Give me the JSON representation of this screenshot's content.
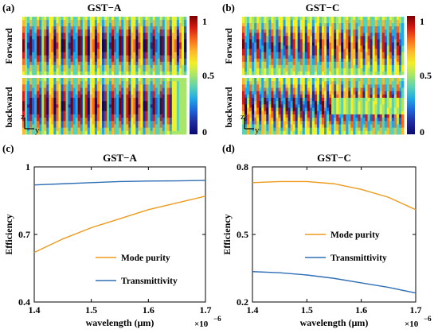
{
  "colorbar": {
    "ticks": [
      "1",
      "0.5",
      "0"
    ],
    "colors": [
      "#7a0000",
      "#d71a12",
      "#f86a1a",
      "#fdb82a",
      "#f2f028",
      "#a8e66a",
      "#5ad2b3",
      "#21a8e6",
      "#1e62d6",
      "#1e2a9c",
      "#0a0a6e"
    ]
  },
  "top": {
    "left": {
      "panel_label": "(a)",
      "title": "GST−A",
      "row_labels": [
        "Forward",
        "backward"
      ]
    },
    "right": {
      "panel_label": "(b)",
      "title": "GST−C",
      "row_labels": [
        "Forward",
        "backward"
      ]
    },
    "axes_glyph": {
      "z": "z",
      "y": "y"
    }
  },
  "chart_data": [
    {
      "panel_label": "(c)",
      "type": "line",
      "title": "GST−A",
      "xlabel": "wavelength (μm)",
      "ylabel": "Efficiency",
      "x_multiplier": "×10",
      "x_exponent": "−6",
      "xlim": [
        1.4,
        1.7
      ],
      "ylim": [
        0.4,
        1.0
      ],
      "xticks": [
        "1.4",
        "1.5",
        "1.6",
        "1.7"
      ],
      "yticks": [
        "0.4",
        "0.7",
        "1"
      ],
      "x": [
        1.4,
        1.45,
        1.5,
        1.55,
        1.6,
        1.65,
        1.7
      ],
      "series": [
        {
          "name": "Mode purity",
          "color": "#ee9a1b",
          "values": [
            0.62,
            0.68,
            0.73,
            0.77,
            0.81,
            0.84,
            0.87
          ]
        },
        {
          "name": "Transmittivity",
          "color": "#2f6fb6",
          "values": [
            0.92,
            0.925,
            0.93,
            0.935,
            0.937,
            0.938,
            0.94
          ]
        }
      ]
    },
    {
      "panel_label": "(d)",
      "type": "line",
      "title": "GST−C",
      "xlabel": "wavelength (μm)",
      "ylabel": "Efficiency",
      "x_multiplier": "×10",
      "x_exponent": "−6",
      "xlim": [
        1.4,
        1.7
      ],
      "ylim": [
        0.2,
        0.8
      ],
      "xticks": [
        "1.4",
        "1.5",
        "1.6",
        "1.7"
      ],
      "yticks": [
        "0.2",
        "0.5",
        "0.8"
      ],
      "x": [
        1.4,
        1.45,
        1.5,
        1.55,
        1.6,
        1.65,
        1.7
      ],
      "series": [
        {
          "name": "Mode purity",
          "color": "#ee9a1b",
          "values": [
            0.73,
            0.735,
            0.735,
            0.725,
            0.7,
            0.665,
            0.61
          ]
        },
        {
          "name": "Transmittivity",
          "color": "#2f6fb6",
          "values": [
            0.335,
            0.33,
            0.32,
            0.305,
            0.285,
            0.265,
            0.24
          ]
        }
      ]
    }
  ]
}
